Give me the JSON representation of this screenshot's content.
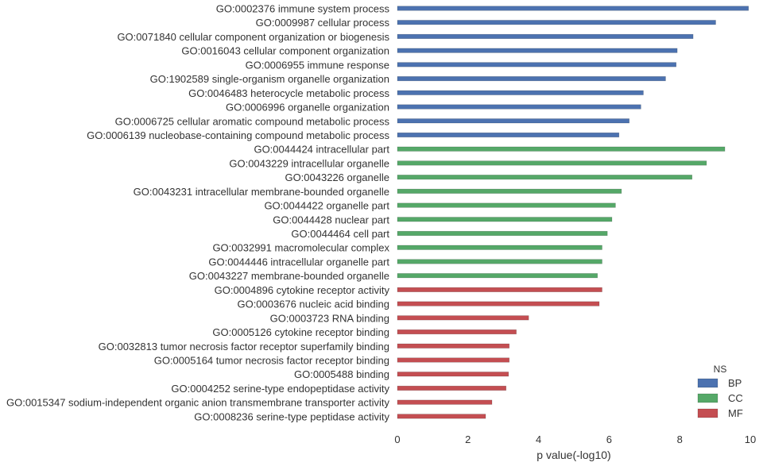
{
  "chart_data": {
    "type": "bar",
    "orientation": "horizontal",
    "xlabel": "p value(-log10)",
    "ylabel": "",
    "xlim": [
      0,
      10
    ],
    "xticks": [
      "0",
      "2",
      "4",
      "6",
      "8",
      "10"
    ],
    "grid": false,
    "legend": {
      "title": "NS",
      "placement": "bottom-right",
      "entries": [
        {
          "name": "BP",
          "color": "#4c72b0"
        },
        {
          "name": "CC",
          "color": "#55a868"
        },
        {
          "name": "MF",
          "color": "#c44e52"
        }
      ]
    },
    "categories": [
      {
        "label": "GO:0002376 immune system process",
        "value": 9.95,
        "group": "BP"
      },
      {
        "label": "GO:0009987 cellular process",
        "value": 9.02,
        "group": "BP"
      },
      {
        "label": "GO:0071840 cellular component organization or biogenesis",
        "value": 8.38,
        "group": "BP"
      },
      {
        "label": "GO:0016043 cellular component organization",
        "value": 7.93,
        "group": "BP"
      },
      {
        "label": "GO:0006955 immune response",
        "value": 7.9,
        "group": "BP"
      },
      {
        "label": "GO:1902589 single-organism organelle organization",
        "value": 7.6,
        "group": "BP"
      },
      {
        "label": "GO:0046483 heterocycle metabolic process",
        "value": 6.97,
        "group": "BP"
      },
      {
        "label": "GO:0006996 organelle organization",
        "value": 6.9,
        "group": "BP"
      },
      {
        "label": "GO:0006725 cellular aromatic compound metabolic process",
        "value": 6.57,
        "group": "BP"
      },
      {
        "label": "GO:0006139 nucleobase-containing compound metabolic process",
        "value": 6.28,
        "group": "BP"
      },
      {
        "label": "GO:0044424 intracellular part",
        "value": 9.28,
        "group": "CC"
      },
      {
        "label": "GO:0043229 intracellular organelle",
        "value": 8.76,
        "group": "CC"
      },
      {
        "label": "GO:0043226 organelle",
        "value": 8.35,
        "group": "CC"
      },
      {
        "label": "GO:0043231 intracellular membrane-bounded organelle",
        "value": 6.35,
        "group": "CC"
      },
      {
        "label": "GO:0044422 organelle part",
        "value": 6.18,
        "group": "CC"
      },
      {
        "label": "GO:0044428 nuclear part",
        "value": 6.08,
        "group": "CC"
      },
      {
        "label": "GO:0044464 cell part",
        "value": 5.95,
        "group": "CC"
      },
      {
        "label": "GO:0032991 macromolecular complex",
        "value": 5.8,
        "group": "CC"
      },
      {
        "label": "GO:0044446 intracellular organelle part",
        "value": 5.8,
        "group": "CC"
      },
      {
        "label": "GO:0043227 membrane-bounded organelle",
        "value": 5.67,
        "group": "CC"
      },
      {
        "label": "GO:0004896 cytokine receptor activity",
        "value": 5.8,
        "group": "MF"
      },
      {
        "label": "GO:0003676 nucleic acid binding",
        "value": 5.72,
        "group": "MF"
      },
      {
        "label": "GO:0003723 RNA binding",
        "value": 3.72,
        "group": "MF"
      },
      {
        "label": "GO:0005126 cytokine receptor binding",
        "value": 3.37,
        "group": "MF"
      },
      {
        "label": "GO:0032813 tumor necrosis factor receptor superfamily binding",
        "value": 3.17,
        "group": "MF"
      },
      {
        "label": "GO:0005164 tumor necrosis factor receptor binding",
        "value": 3.17,
        "group": "MF"
      },
      {
        "label": "GO:0005488 binding",
        "value": 3.15,
        "group": "MF"
      },
      {
        "label": "GO:0004252 serine-type endopeptidase activity",
        "value": 3.08,
        "group": "MF"
      },
      {
        "label": "GO:0015347 sodium-independent organic anion transmembrane transporter activity",
        "value": 2.68,
        "group": "MF"
      },
      {
        "label": "GO:0008236 serine-type peptidase activity",
        "value": 2.5,
        "group": "MF"
      }
    ]
  }
}
